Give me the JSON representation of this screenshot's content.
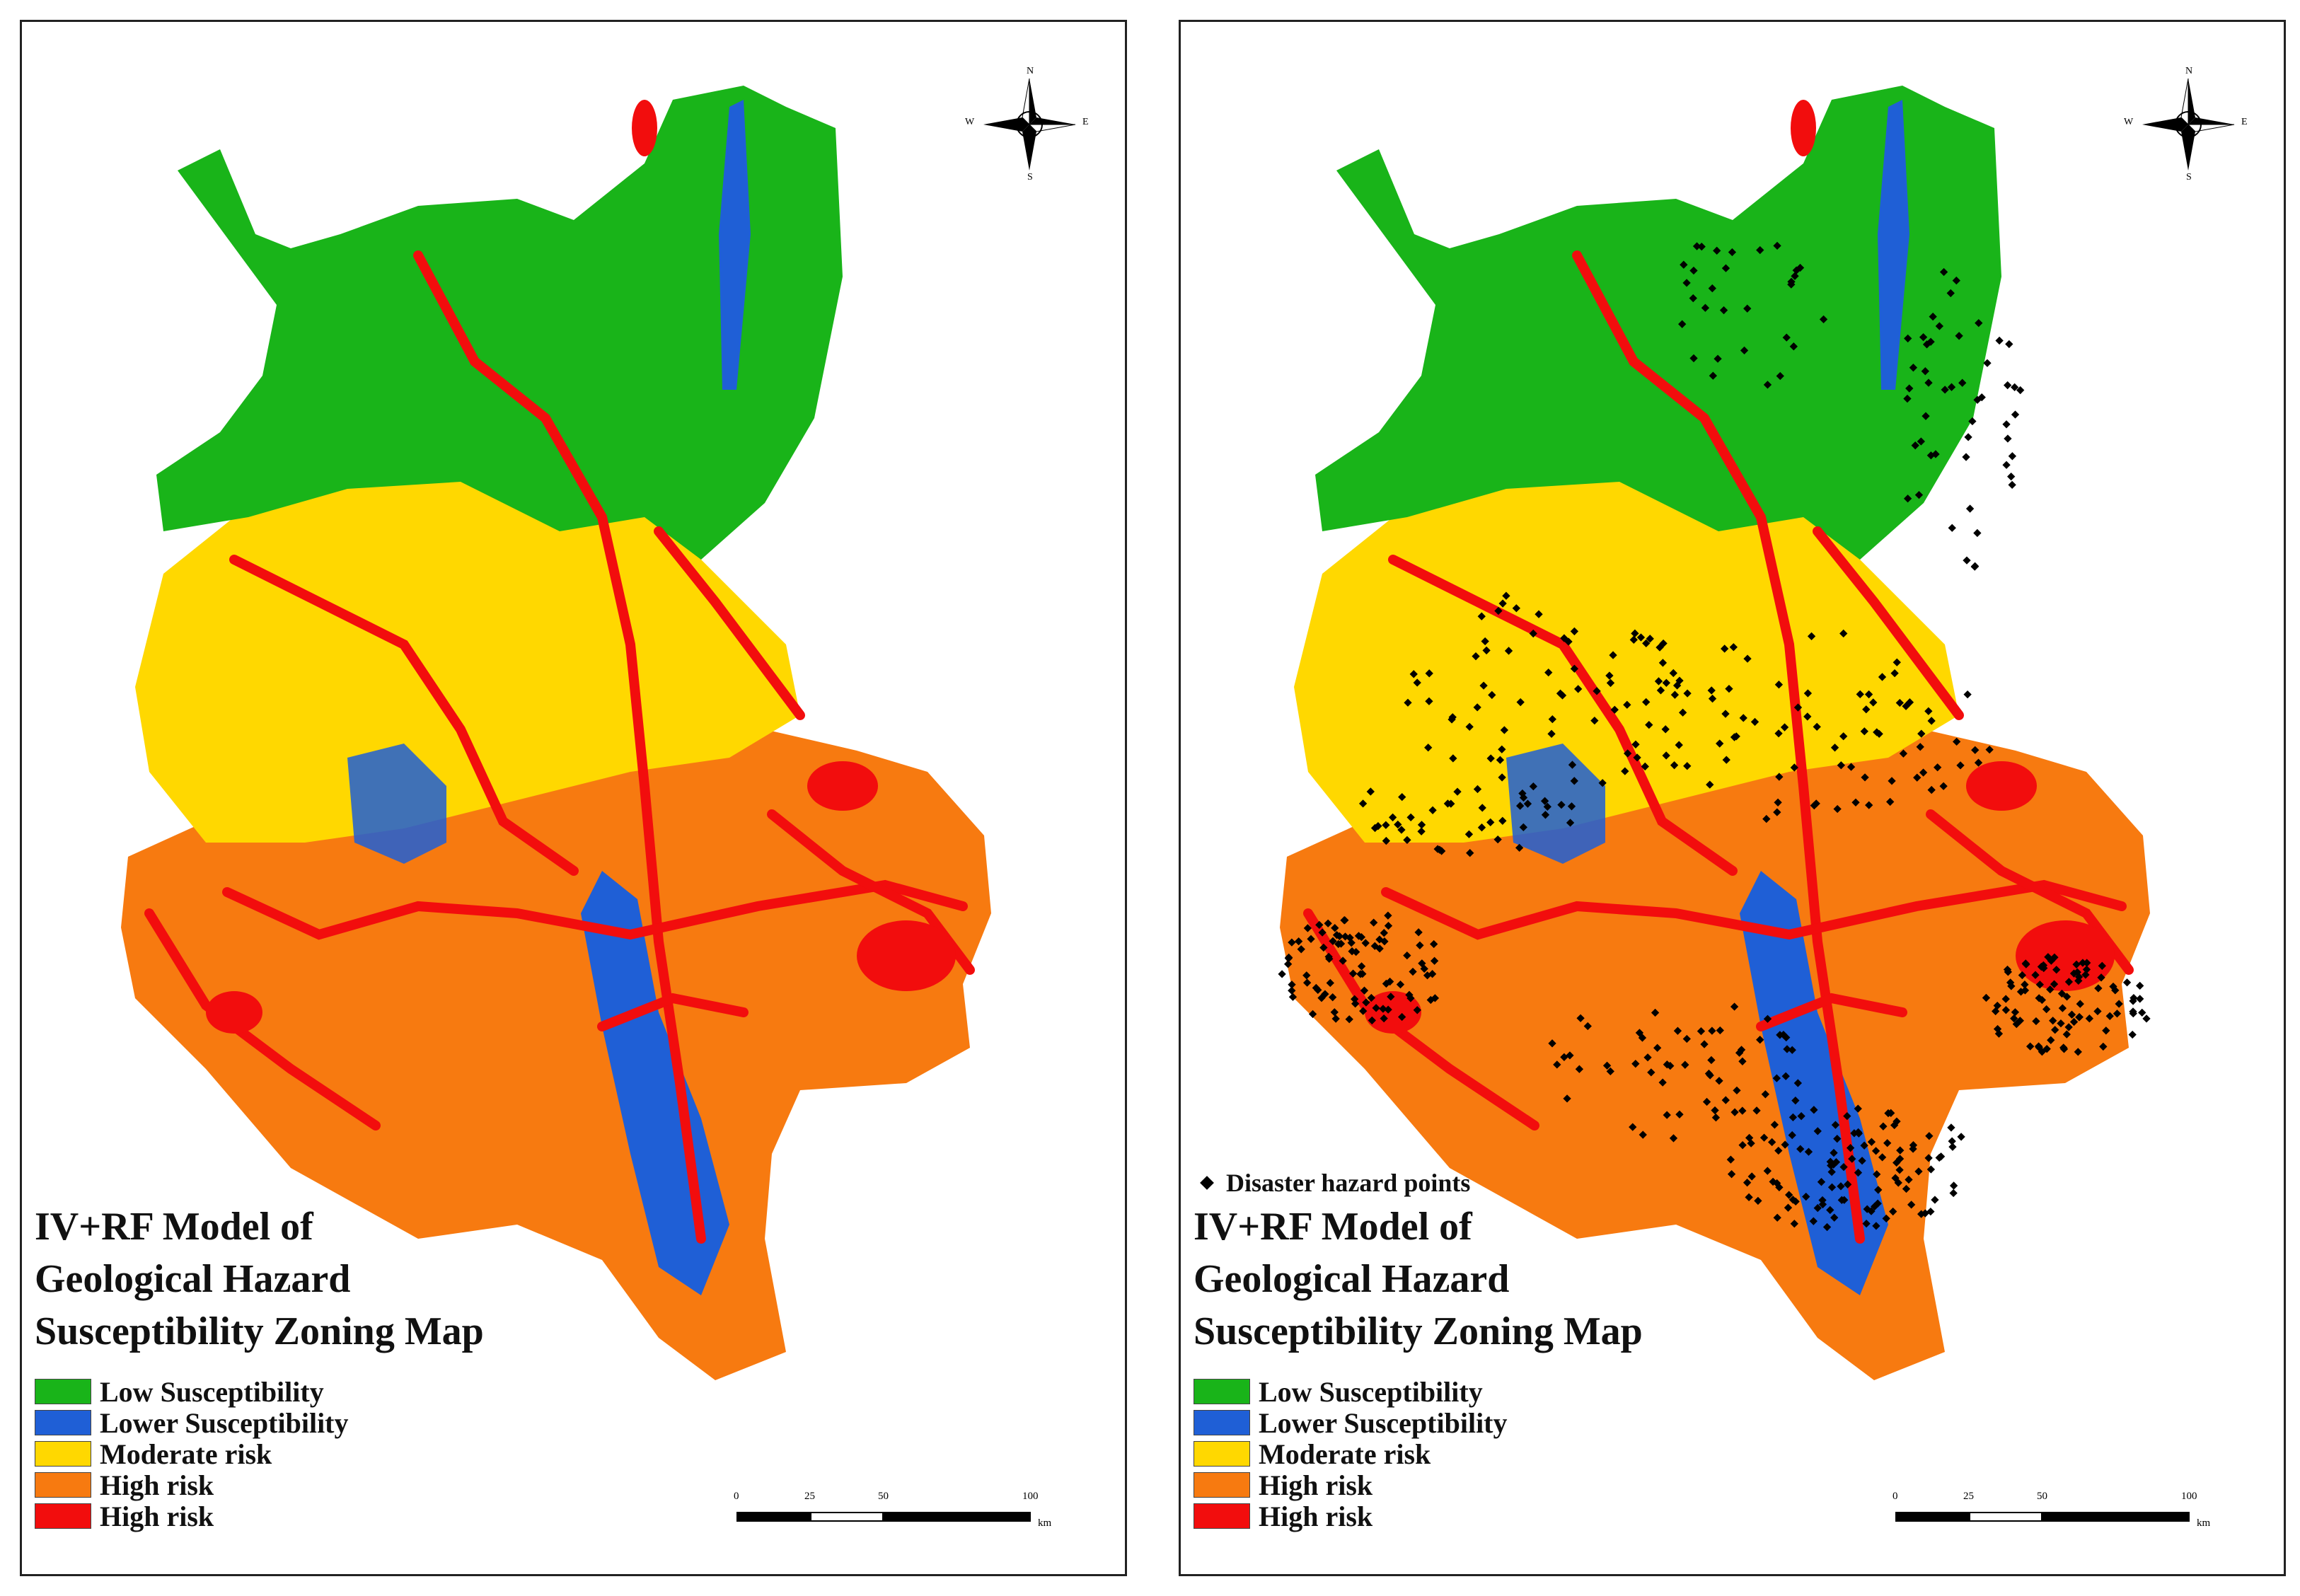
{
  "figure": {
    "panels": [
      {
        "id": "left",
        "title_lines": [
          "IV+RF Model of",
          "Geological Hazard",
          "Susceptibility Zoning Map"
        ],
        "show_hazard_points": false
      },
      {
        "id": "right",
        "title_lines": [
          "IV+RF Model of",
          "Geological Hazard",
          "Susceptibility Zoning Map"
        ],
        "show_hazard_points": true,
        "hazard_points_label": "Disaster hazard points"
      }
    ],
    "legend": [
      {
        "label": "Low Susceptibility",
        "color": "#19b419"
      },
      {
        "label": "Lower Susceptibility",
        "color": "#1f5fd6"
      },
      {
        "label": "Moderate risk",
        "color": "#ffd800"
      },
      {
        "label": "High risk",
        "color": "#f77a10"
      },
      {
        "label": "High risk",
        "color": "#f20d0d"
      }
    ],
    "compass": {
      "n": "N",
      "s": "S",
      "e": "E",
      "w": "W"
    },
    "scale": {
      "ticks": [
        "0",
        "25",
        "50",
        "100"
      ],
      "unit": "km"
    }
  }
}
